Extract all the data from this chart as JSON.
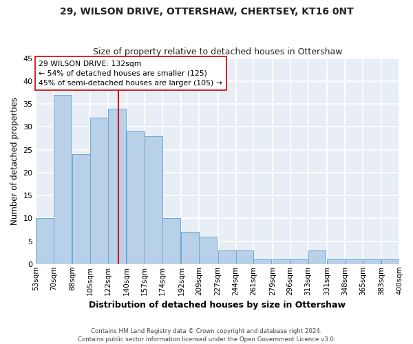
{
  "title": "29, WILSON DRIVE, OTTERSHAW, CHERTSEY, KT16 0NT",
  "subtitle": "Size of property relative to detached houses in Ottershaw",
  "xlabel": "Distribution of detached houses by size in Ottershaw",
  "ylabel": "Number of detached properties",
  "annotation_line1": "29 WILSON DRIVE: 132sqm",
  "annotation_line2": "← 54% of detached houses are smaller (125)",
  "annotation_line3": "45% of semi-detached houses are larger (105) →",
  "property_size": 132,
  "bar_left_edges": [
    53,
    70,
    88,
    105,
    122,
    140,
    157,
    174,
    192,
    209,
    227,
    244,
    261,
    279,
    296,
    313,
    331,
    348,
    365,
    383
  ],
  "bar_heights": [
    10,
    37,
    24,
    32,
    34,
    29,
    28,
    10,
    7,
    6,
    3,
    3,
    1,
    1,
    1,
    3,
    1,
    1,
    1,
    1
  ],
  "bin_width": 17,
  "bar_color": "#b8d0e8",
  "bar_edge_color": "#6aaad4",
  "vline_x": 132,
  "vline_color": "#cc0000",
  "ylim": [
    0,
    45
  ],
  "xlim": [
    53,
    400
  ],
  "tick_labels": [
    "53sqm",
    "70sqm",
    "88sqm",
    "105sqm",
    "122sqm",
    "140sqm",
    "157sqm",
    "174sqm",
    "192sqm",
    "209sqm",
    "227sqm",
    "244sqm",
    "261sqm",
    "279sqm",
    "296sqm",
    "313sqm",
    "331sqm",
    "348sqm",
    "365sqm",
    "383sqm",
    "400sqm"
  ],
  "tick_positions": [
    53,
    70,
    88,
    105,
    122,
    140,
    157,
    174,
    192,
    209,
    227,
    244,
    261,
    279,
    296,
    313,
    331,
    348,
    365,
    383,
    400
  ],
  "footer_line1": "Contains HM Land Registry data © Crown copyright and database right 2024.",
  "footer_line2": "Contains public sector information licensed under the Open Government Licence v3.0.",
  "background_color": "#e8eef6",
  "grid_color": "#ffffff",
  "annotation_box_color": "#ffffff",
  "annotation_box_edge_color": "#cc0000",
  "yticks": [
    0,
    5,
    10,
    15,
    20,
    25,
    30,
    35,
    40,
    45
  ],
  "title_fontsize": 10,
  "subtitle_fontsize": 9
}
